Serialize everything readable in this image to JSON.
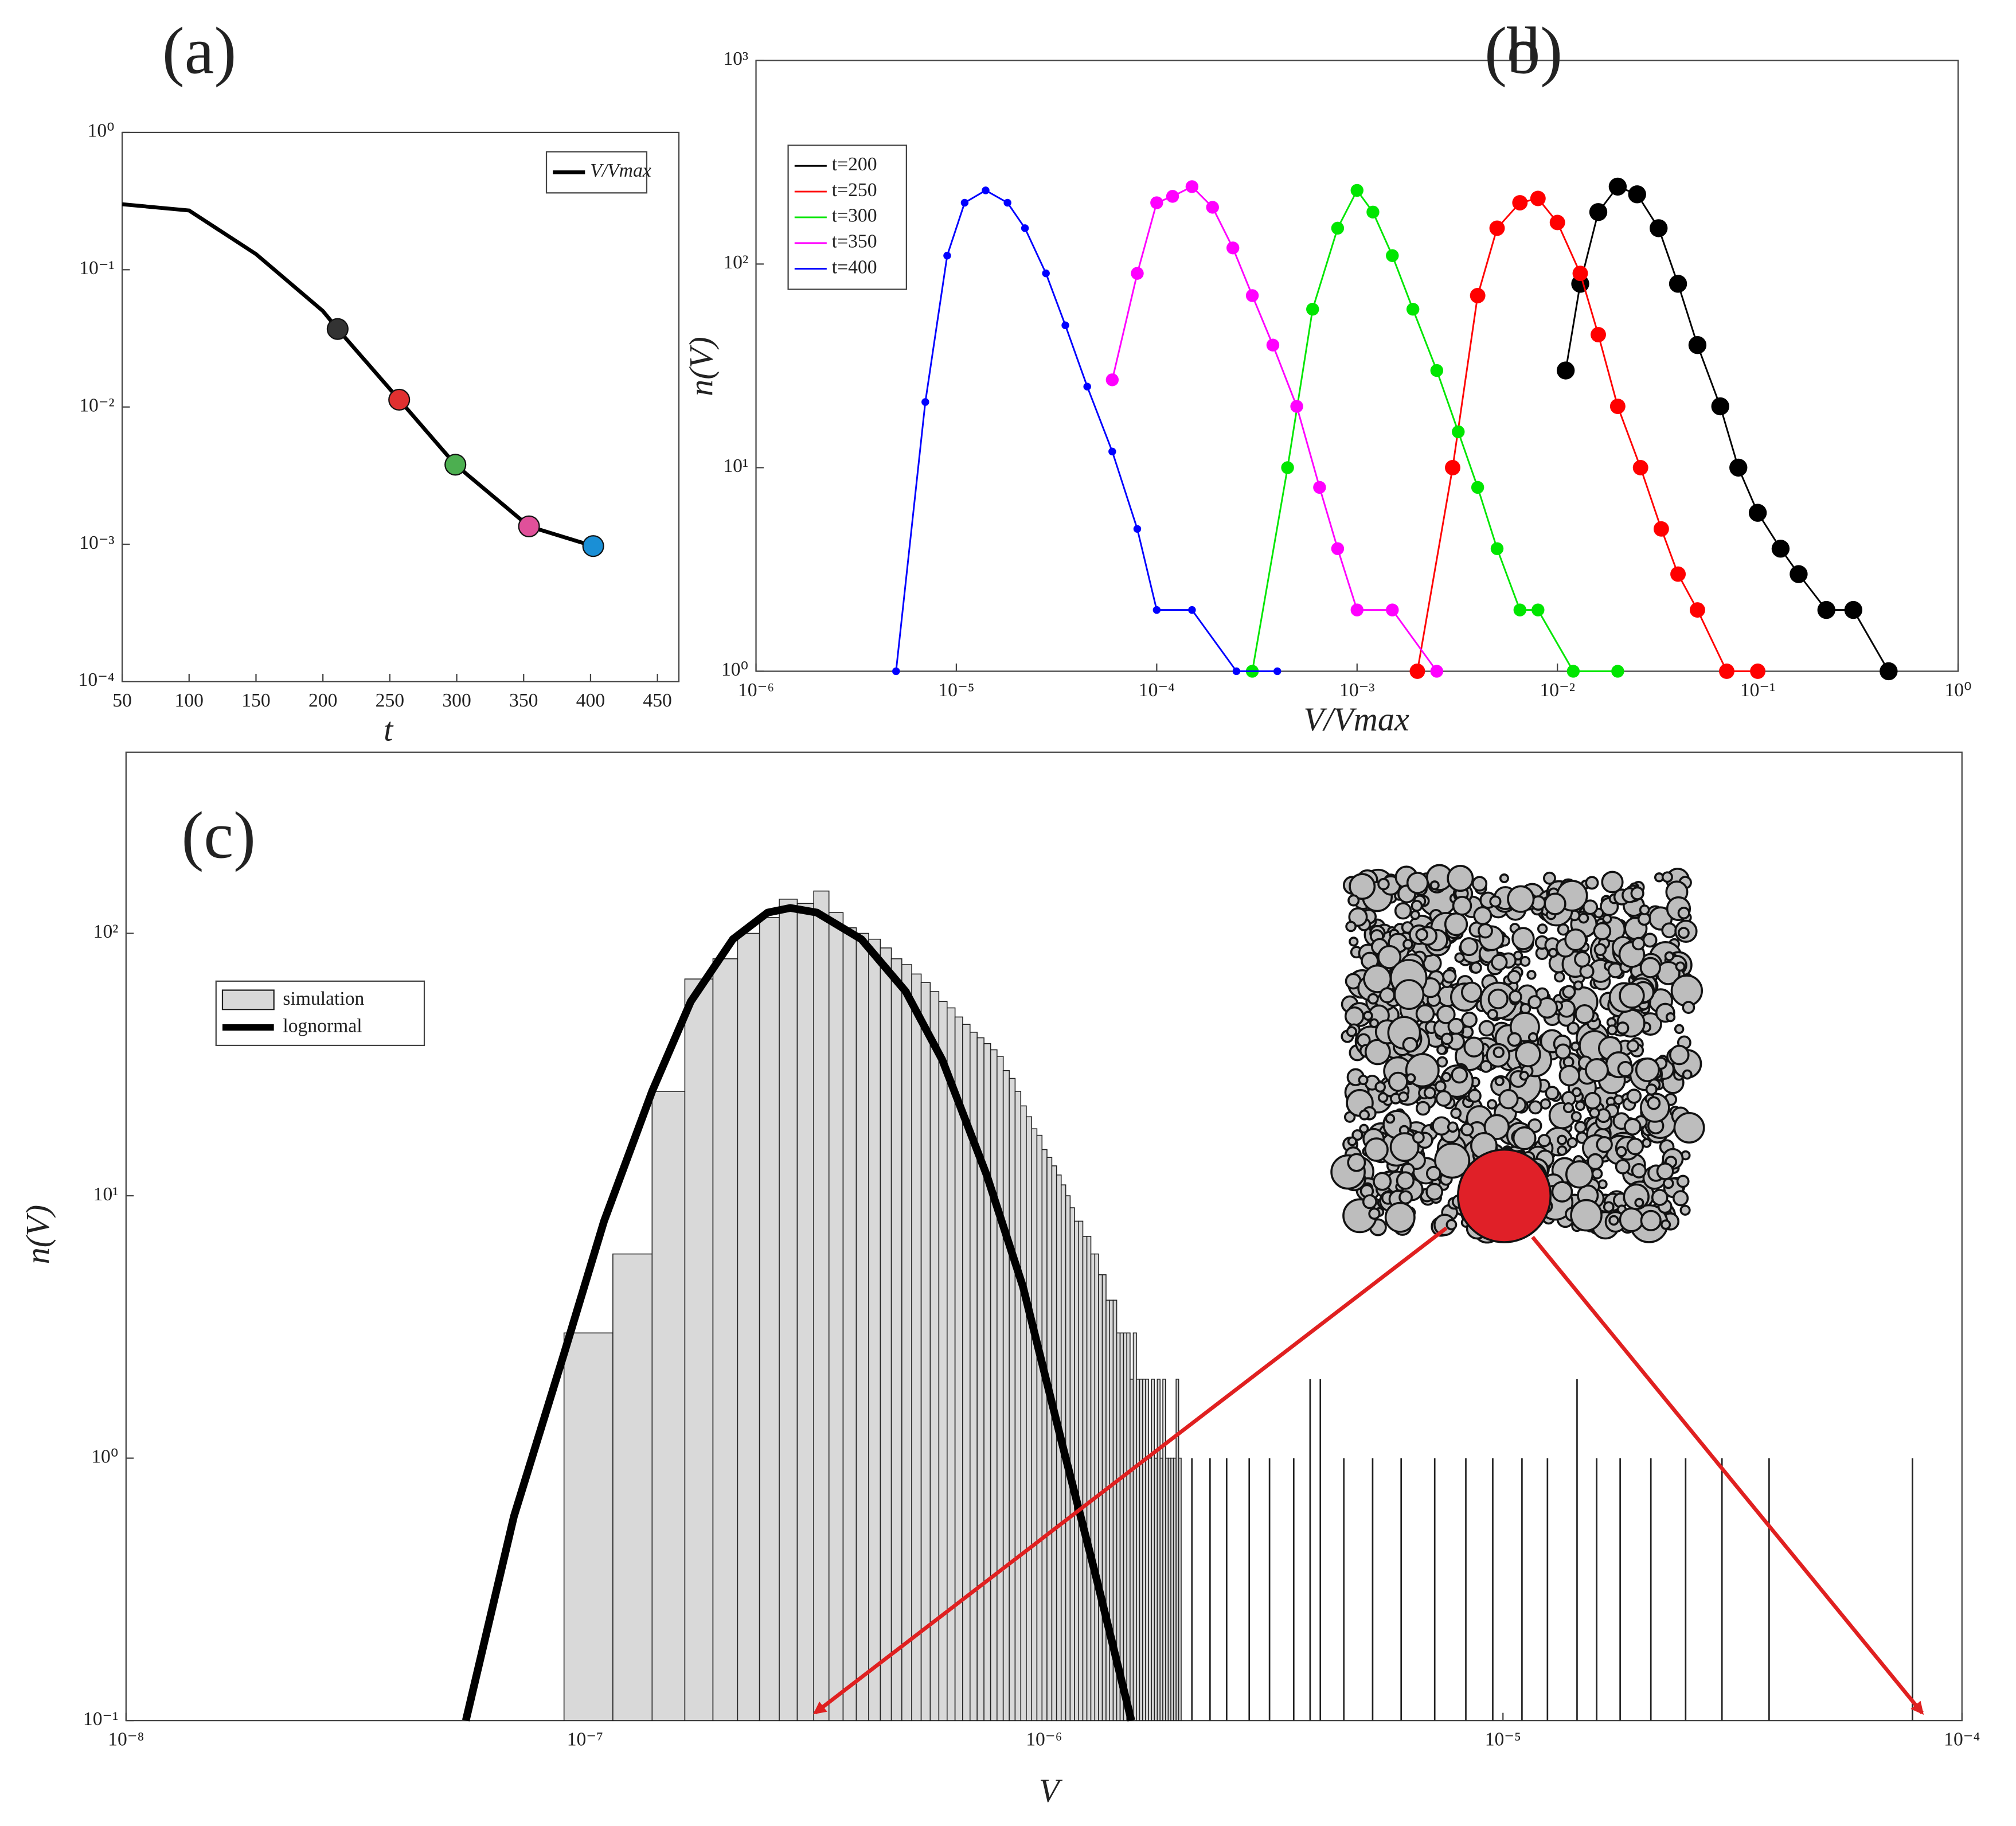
{
  "chart_data": [
    {
      "type": "line",
      "label": "(a)",
      "xlabel": "t",
      "x": [
        50,
        100,
        150,
        200,
        211,
        257,
        299,
        354,
        402
      ],
      "series": [
        {
          "name": "V/Vmax",
          "color": "#000000",
          "values": [
            0.3,
            0.27,
            0.13,
            0.05,
            0.037,
            0.0113,
            0.0038,
            0.00135,
            0.00097
          ],
          "marker_colors": [
            null,
            null,
            null,
            null,
            "#333333",
            "#e03030",
            "#4caf50",
            "#e0509a",
            "#1a8fd6"
          ]
        }
      ],
      "xlim": [
        50,
        466
      ],
      "xticks": [
        50,
        100,
        150,
        200,
        250,
        300,
        350,
        400,
        450
      ],
      "ylim": [
        0.0001,
        1
      ],
      "yscale": "log",
      "yticks": [
        {
          "value": 0.0001,
          "label": "10⁻⁴"
        },
        {
          "value": 0.001,
          "label": "10⁻³"
        },
        {
          "value": 0.01,
          "label": "10⁻²"
        },
        {
          "value": 0.1,
          "label": "10⁻¹"
        },
        {
          "value": 1,
          "label": "10⁰"
        }
      ],
      "legend": "upper right"
    },
    {
      "type": "line",
      "label": "(b)",
      "xlabel": "V/Vmax",
      "ylabel": "n(V)",
      "series": [
        {
          "name": "t=200",
          "color": "#000000",
          "x": [
            0.011,
            0.013,
            0.016,
            0.02,
            0.025,
            0.032,
            0.04,
            0.05,
            0.065,
            0.08,
            0.1,
            0.13,
            0.16,
            0.22,
            0.3,
            0.45
          ],
          "values": [
            30,
            80,
            180,
            240,
            220,
            150,
            80,
            40,
            20,
            10,
            6,
            4,
            3,
            2,
            2,
            1
          ]
        },
        {
          "name": "t=250",
          "color": "#ff0000",
          "x": [
            0.002,
            0.003,
            0.004,
            0.005,
            0.0065,
            0.008,
            0.01,
            0.013,
            0.016,
            0.02,
            0.026,
            0.033,
            0.04,
            0.05,
            0.07,
            0.1
          ],
          "values": [
            1,
            10,
            70,
            150,
            200,
            210,
            160,
            90,
            45,
            20,
            10,
            5,
            3,
            2,
            1,
            1
          ]
        },
        {
          "name": "t=300",
          "color": "#00e600",
          "x": [
            0.0003,
            0.00045,
            0.0006,
            0.0008,
            0.001,
            0.0012,
            0.0015,
            0.0019,
            0.0025,
            0.0032,
            0.004,
            0.005,
            0.0065,
            0.008,
            0.012,
            0.02
          ],
          "values": [
            1,
            10,
            60,
            150,
            230,
            180,
            110,
            60,
            30,
            15,
            8,
            4,
            2,
            2,
            1,
            1
          ]
        },
        {
          "name": "t=350",
          "color": "#ff00ff",
          "x": [
            6e-05,
            8e-05,
            0.0001,
            0.00012,
            0.00015,
            0.00019,
            0.00024,
            0.0003,
            0.00038,
            0.0005,
            0.00065,
            0.0008,
            0.001,
            0.0015,
            0.0025
          ],
          "values": [
            27,
            90,
            200,
            215,
            240,
            190,
            120,
            70,
            40,
            20,
            8,
            4,
            2,
            2,
            1
          ]
        },
        {
          "name": "t=400",
          "color": "#0000ff",
          "x": [
            5e-06,
            7e-06,
            9e-06,
            1.1e-05,
            1.4e-05,
            1.8e-05,
            2.2e-05,
            2.8e-05,
            3.5e-05,
            4.5e-05,
            6e-05,
            8e-05,
            0.0001,
            0.00015,
            0.00025,
            0.0004
          ],
          "values": [
            1,
            21,
            110,
            200,
            230,
            200,
            150,
            90,
            50,
            25,
            12,
            5,
            2,
            2,
            1,
            1
          ]
        }
      ],
      "xlim": [
        1e-06,
        1
      ],
      "xscale": "log",
      "xticks": [
        {
          "value": 1e-06,
          "label": "10⁻⁶"
        },
        {
          "value": 1e-05,
          "label": "10⁻⁵"
        },
        {
          "value": 0.0001,
          "label": "10⁻⁴"
        },
        {
          "value": 0.001,
          "label": "10⁻³"
        },
        {
          "value": 0.01,
          "label": "10⁻²"
        },
        {
          "value": 0.1,
          "label": "10⁻¹"
        },
        {
          "value": 1,
          "label": "10⁰"
        }
      ],
      "ylim": [
        1,
        1000
      ],
      "yscale": "log",
      "yticks": [
        {
          "value": 1,
          "label": "10⁰"
        },
        {
          "value": 10,
          "label": "10¹"
        },
        {
          "value": 100,
          "label": "10²"
        },
        {
          "value": 1000,
          "label": "10³"
        }
      ],
      "legend": "upper left"
    },
    {
      "type": "histogram",
      "label": "(c)",
      "xlabel": "V",
      "ylabel": "n(V)",
      "name": "simulation",
      "color": "#d9d9d9",
      "bins": [
        9e-08,
        1.15e-07,
        1.4e-07,
        1.65e-07,
        1.9e-07,
        2.15e-07,
        2.4e-07,
        2.65e-07,
        2.9e-07,
        3.15e-07,
        3.4e-07,
        3.65e-07,
        3.9e-07,
        4.15e-07,
        4.4e-07,
        4.65e-07,
        4.9e-07,
        5.15e-07,
        5.4e-07,
        5.65e-07,
        5.9e-07,
        6.15e-07,
        6.4e-07,
        6.65e-07,
        6.9e-07,
        7.15e-07,
        7.4e-07,
        7.65e-07,
        7.9e-07,
        8.15e-07,
        8.4e-07,
        8.65e-07,
        8.9e-07,
        9.15e-07,
        9.4e-07,
        9.65e-07,
        9.9e-07,
        1.015e-06,
        1.04e-06,
        1.065e-06,
        1.09e-06,
        1.115e-06,
        1.14e-06,
        1.165e-06,
        1.19e-06,
        1.215e-06,
        1.24e-06,
        1.265e-06,
        1.29e-06,
        1.315e-06,
        1.34e-06,
        1.365e-06,
        1.39e-06,
        1.415e-06,
        1.44e-06,
        1.465e-06,
        1.49e-06,
        1.515e-06,
        1.54e-06,
        1.565e-06,
        1.59e-06,
        1.615e-06,
        1.64e-06,
        1.665e-06,
        1.69e-06,
        1.715e-06,
        1.74e-06,
        1.765e-06,
        1.79e-06,
        1.815e-06,
        1.84e-06,
        1.865e-06,
        1.89e-06,
        1.915e-06,
        1.94e-06,
        1.965e-06,
        1.99e-06
      ],
      "counts": [
        3,
        6,
        25,
        67,
        80,
        100,
        115,
        135,
        130,
        145,
        120,
        105,
        100,
        95,
        88,
        80,
        76,
        70,
        65,
        60,
        55,
        52,
        48,
        45,
        42,
        40,
        38,
        36,
        34,
        30,
        28,
        25,
        22,
        20,
        18,
        17,
        15,
        14,
        13,
        12,
        11,
        10,
        9,
        8,
        8,
        7,
        7,
        6,
        6,
        5,
        5,
        4,
        4,
        4,
        3,
        3,
        3,
        3,
        2,
        3,
        2,
        2,
        2,
        2,
        1,
        2,
        1,
        2,
        1,
        2,
        1,
        1,
        1,
        1,
        2,
        1
      ],
      "tail_x": [
        2.1e-06,
        2.3e-06,
        2.5e-06,
        2.8e-06,
        3.1e-06,
        3.5e-06,
        3.8e-06,
        4e-06,
        4.5e-06,
        5.2e-06,
        6e-06,
        7.1e-06,
        8.3e-06,
        9.5e-06,
        1.1e-05,
        1.25e-05,
        1.45e-05,
        1.6e-05,
        1.8e-05,
        2.1e-05,
        2.5e-05,
        3e-05,
        3.8e-05,
        7.8e-05
      ],
      "tail_values": [
        1,
        1,
        1,
        1,
        1,
        1,
        2,
        2,
        1,
        1,
        1,
        1,
        1,
        1,
        1,
        1,
        2,
        1,
        1,
        1,
        1,
        1,
        1,
        1
      ],
      "fit": {
        "name": "lognormal",
        "color": "#000000",
        "x": [
          5.5e-08,
          7e-08,
          9e-08,
          1.1e-07,
          1.4e-07,
          1.7e-07,
          2.1e-07,
          2.5e-07,
          2.8e-07,
          3.2e-07,
          4e-07,
          5e-07,
          6e-07,
          7.5e-07,
          9e-07,
          1.1e-06,
          1.3e-06,
          1.55e-06
        ],
        "values": [
          0.1,
          0.6,
          2.5,
          8,
          25,
          55,
          95,
          120,
          125,
          120,
          95,
          60,
          33,
          12,
          4.5,
          1.1,
          0.35,
          0.1
        ]
      },
      "xlim": [
        1e-08,
        0.0001
      ],
      "xscale": "log",
      "xticks": [
        {
          "value": 1e-08,
          "label": "10⁻⁸"
        },
        {
          "value": 1e-07,
          "label": "10⁻⁷"
        },
        {
          "value": 1e-06,
          "label": "10⁻⁶"
        },
        {
          "value": 1e-05,
          "label": "10⁻⁵"
        },
        {
          "value": 0.0001,
          "label": "10⁻⁴"
        }
      ],
      "ylim": [
        0.1,
        490
      ],
      "yscale": "log",
      "yticks": [
        {
          "value": 0.1,
          "label": "10⁻¹"
        },
        {
          "value": 1,
          "label": "10⁰"
        },
        {
          "value": 10,
          "label": "10¹"
        },
        {
          "value": 100,
          "label": "10²"
        }
      ],
      "legend": "upper left"
    }
  ],
  "inset": {
    "label": "(d)"
  }
}
